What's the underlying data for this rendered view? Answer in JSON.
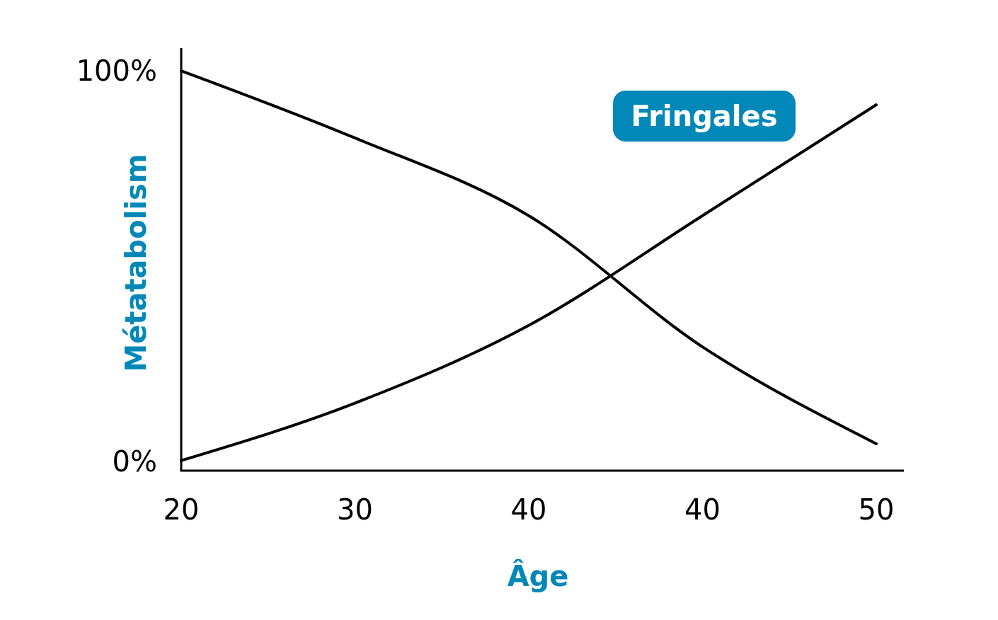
{
  "chart_data": {
    "type": "line",
    "xlabel": "Âge",
    "ylabel": "Métatabolism",
    "categories": [
      "20",
      "30",
      "40",
      "40",
      "50"
    ],
    "ylim": [
      -2.4,
      105.8
    ],
    "yticks": [
      {
        "value": 0,
        "label": "0%"
      },
      {
        "value": 100,
        "label": "100%"
      }
    ],
    "grid": false,
    "legend": false,
    "line_style": "solid",
    "series": [
      {
        "color": "#000000",
        "values": [
          100,
          82.8,
          62.9,
          29.3,
          4.5
        ]
      },
      {
        "name": "Fringales",
        "color": "#000000",
        "values": [
          0.2,
          14.9,
          34.8,
          62.9,
          91.3
        ]
      }
    ]
  }
}
